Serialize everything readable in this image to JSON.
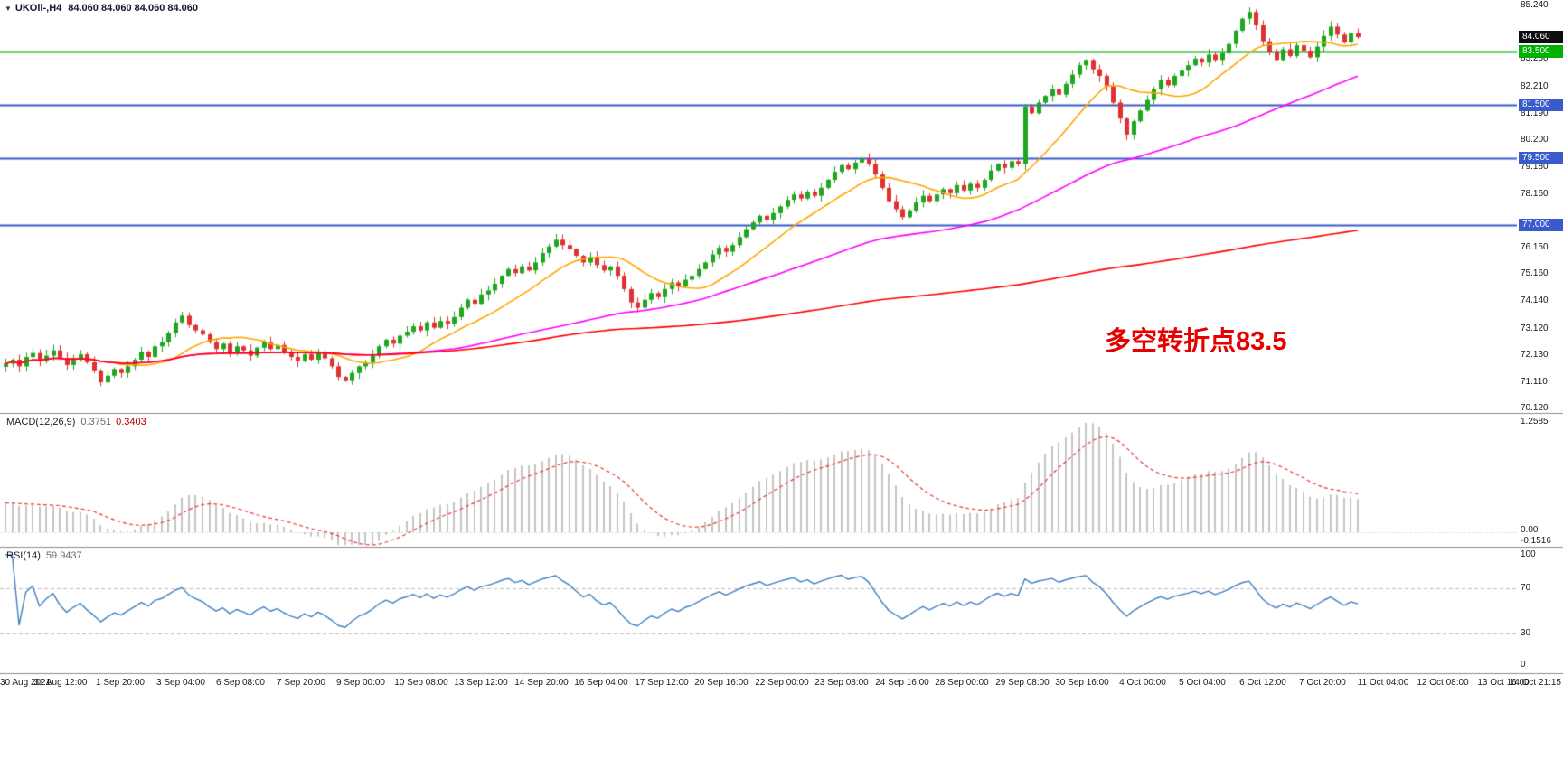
{
  "header": {
    "dropdown_icon": "▼",
    "symbol_timeframe": "UKOil-,H4",
    "ohlc": "84.060 84.060 84.060 84.060"
  },
  "annotation": {
    "text": "多空转折点83.5",
    "color": "#E60000"
  },
  "price_axis": {
    "labels": [
      "85.240",
      "83.230",
      "82.210",
      "81.190",
      "80.200",
      "79.180",
      "78.160",
      "76.150",
      "75.160",
      "74.140",
      "73.120",
      "72.130",
      "71.110",
      "70.120"
    ],
    "badges": [
      {
        "text": "84.060",
        "price": 84.06,
        "bg": "#0d0d0d",
        "name": "current-price-badge"
      },
      {
        "text": "83.500",
        "price": 83.5,
        "bg": "#00b200",
        "name": "level-badge-83500"
      },
      {
        "text": "81.500",
        "price": 81.5,
        "bg": "#3a5bcb",
        "name": "level-badge-81500"
      },
      {
        "text": "79.500",
        "price": 79.5,
        "bg": "#3a5bcb",
        "name": "level-badge-79500"
      },
      {
        "text": "77.000",
        "price": 77.0,
        "bg": "#3a5bcb",
        "name": "level-badge-77000"
      }
    ]
  },
  "levels": [
    {
      "price": 83.5,
      "color": "#00b200",
      "width": 2
    },
    {
      "price": 81.5,
      "color": "#3a5bcb",
      "width": 2
    },
    {
      "price": 79.5,
      "color": "#3a5bcb",
      "width": 2
    },
    {
      "price": 77.0,
      "color": "#3a5bcb",
      "width": 2
    }
  ],
  "macd_panel": {
    "label": "MACD(12,26,9)",
    "value_main": "0.3751",
    "value_signal": "0.3403",
    "axis_labels": [
      "1.2585",
      "0.00",
      "-0.1516"
    ],
    "histogram_color": "#c4c4c4",
    "signal_color": "#e53935"
  },
  "rsi_panel": {
    "label": "RSI(14)",
    "value": "59.9437",
    "axis_labels": [
      "100",
      "70",
      "30",
      "0"
    ],
    "level_lines": [
      70,
      30
    ],
    "line_color": "#3f7fc1"
  },
  "time_axis": {
    "labels": [
      "30 Aug 2021",
      "31 Aug 12:00",
      "1 Sep 20:00",
      "3 Sep 04:00",
      "6 Sep 08:00",
      "7 Sep 20:00",
      "9 Sep 00:00",
      "10 Sep 08:00",
      "13 Sep 12:00",
      "14 Sep 20:00",
      "16 Sep 04:00",
      "17 Sep 12:00",
      "20 Sep 16:00",
      "22 Sep 00:00",
      "23 Sep 08:00",
      "24 Sep 16:00",
      "28 Sep 00:00",
      "29 Sep 08:00",
      "30 Sep 16:00",
      "4 Oct 00:00",
      "5 Oct 04:00",
      "6 Oct 12:00",
      "7 Oct 20:00",
      "11 Oct 04:00",
      "12 Oct 08:00",
      "13 Oct 16:00",
      "14 Oct 21:15"
    ]
  },
  "chart_data": {
    "type": "candlestick",
    "symbol": "UKOil-",
    "timeframe": "H4",
    "title": "UKOil-,H4 84.060 84.060 84.060 84.060",
    "visible_price_range": [
      70.12,
      85.24
    ],
    "current_price": 84.06,
    "up_color": "#1fa51f",
    "down_color": "#df3131",
    "closes": [
      71.8,
      71.95,
      71.7,
      72.05,
      72.2,
      71.9,
      72.1,
      72.3,
      72.0,
      71.75,
      71.95,
      72.15,
      71.85,
      71.55,
      71.1,
      71.35,
      71.6,
      71.45,
      71.7,
      71.95,
      72.25,
      72.05,
      72.45,
      72.6,
      72.95,
      73.35,
      73.6,
      73.25,
      73.05,
      72.9,
      72.6,
      72.35,
      72.55,
      72.2,
      72.45,
      72.3,
      72.1,
      72.4,
      72.6,
      72.35,
      72.5,
      72.25,
      72.05,
      71.9,
      72.15,
      71.95,
      72.2,
      72.0,
      71.7,
      71.3,
      71.15,
      71.45,
      71.7,
      71.85,
      72.1,
      72.45,
      72.7,
      72.55,
      72.85,
      73.0,
      73.2,
      73.05,
      73.35,
      73.15,
      73.4,
      73.3,
      73.55,
      73.9,
      74.2,
      74.05,
      74.4,
      74.55,
      74.8,
      75.1,
      75.35,
      75.2,
      75.45,
      75.3,
      75.6,
      75.95,
      76.2,
      76.45,
      76.25,
      76.1,
      75.85,
      75.6,
      75.8,
      75.5,
      75.3,
      75.45,
      75.1,
      74.6,
      74.1,
      73.9,
      74.2,
      74.45,
      74.3,
      74.6,
      74.85,
      74.7,
      74.95,
      75.1,
      75.35,
      75.6,
      75.9,
      76.15,
      76.0,
      76.25,
      76.55,
      76.85,
      77.1,
      77.35,
      77.2,
      77.45,
      77.7,
      77.95,
      78.15,
      78.0,
      78.25,
      78.1,
      78.4,
      78.7,
      79.0,
      79.25,
      79.1,
      79.35,
      79.5,
      79.3,
      78.9,
      78.4,
      77.9,
      77.6,
      77.3,
      77.55,
      77.85,
      78.1,
      77.9,
      78.15,
      78.35,
      78.2,
      78.5,
      78.3,
      78.55,
      78.4,
      78.7,
      79.05,
      79.3,
      79.15,
      79.4,
      79.3,
      81.45,
      81.2,
      81.6,
      81.85,
      82.1,
      81.9,
      82.3,
      82.65,
      83.0,
      83.2,
      82.85,
      82.6,
      82.2,
      81.6,
      81.0,
      80.4,
      80.9,
      81.3,
      81.7,
      82.1,
      82.45,
      82.25,
      82.6,
      82.8,
      83.0,
      83.25,
      83.1,
      83.4,
      83.2,
      83.45,
      83.8,
      84.3,
      84.75,
      85.0,
      84.5,
      83.9,
      83.5,
      83.2,
      83.6,
      83.35,
      83.75,
      83.55,
      83.3,
      83.7,
      84.1,
      84.45,
      84.15,
      83.85,
      84.2,
      84.06
    ],
    "moving_averages": [
      {
        "name": "fast-ma",
        "period": 13,
        "color": "#ffa500"
      },
      {
        "name": "medium-ma",
        "period": 55,
        "color": "#ff00ff"
      },
      {
        "name": "slow-ma",
        "period": 200,
        "color": "#ff0000"
      }
    ],
    "indicators": [
      {
        "name": "MACD",
        "params": [
          12,
          26,
          9
        ],
        "current": [
          0.3751,
          0.3403
        ],
        "axis_max": 1.2585,
        "axis_min": -0.1516
      },
      {
        "name": "RSI",
        "params": [
          14
        ],
        "current": 59.9437,
        "levels": [
          70,
          30
        ]
      }
    ],
    "horizontal_lines": [
      83.5,
      81.5,
      79.5,
      77.0
    ],
    "annotation": "多空转折点83.5"
  }
}
